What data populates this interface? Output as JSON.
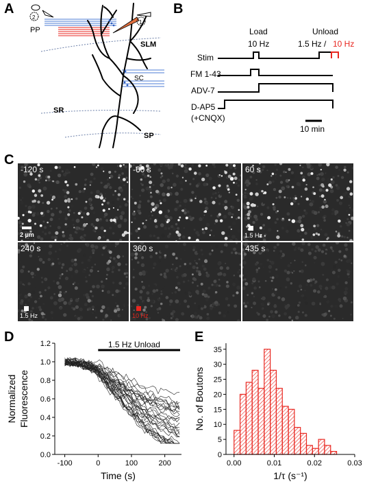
{
  "panels": {
    "a": {
      "label": "A",
      "pp": "PP",
      "slm": "SLM",
      "sc": "SC",
      "sr": "SR",
      "sp": "SP",
      "electrode1": "1",
      "electrode2": "2"
    },
    "b": {
      "label": "B",
      "load": "Load",
      "load_freq": "10 Hz",
      "unload": "Unload",
      "unload_freq": "1.5 Hz /",
      "unload_freq_red": "10 Hz",
      "rows": [
        "Stim",
        "FM 1-43",
        "ADV-7",
        "D-AP5",
        "(+CNQX)"
      ],
      "scale": "10 min",
      "red": "#e8261f"
    },
    "c": {
      "label": "C",
      "times": [
        "-120 s",
        "-60 s",
        "60 s",
        "240 s",
        "360 s",
        "435 s"
      ],
      "scalebar": "2 µm",
      "stim_labels": [
        "1.5 Hz",
        "1.5 Hz",
        "10 Hz"
      ]
    },
    "d": {
      "label": "D",
      "bar_label": "1.5 Hz Unload"
    },
    "e": {
      "label": "E"
    }
  },
  "chart_data": [
    {
      "type": "line",
      "xlabel": "Time (s)",
      "ylabel": "Normalized Fluorescence",
      "xlim": [
        -130,
        250
      ],
      "ylim": [
        0.0,
        1.2
      ],
      "xticks": [
        -100,
        0,
        100,
        200
      ],
      "yticks": [
        0.0,
        0.2,
        0.4,
        0.6,
        0.8,
        1.0,
        1.2
      ],
      "annotation": {
        "text": "1.5 Hz Unload",
        "start": 0,
        "end": 250
      },
      "mean_trace": {
        "x": [
          -120,
          -100,
          -80,
          -60,
          -40,
          -20,
          0,
          20,
          40,
          60,
          80,
          100,
          120,
          140,
          160,
          180,
          200,
          220,
          240
        ],
        "y": [
          0.98,
          1.0,
          1.0,
          0.99,
          0.97,
          0.95,
          0.92,
          0.86,
          0.8,
          0.74,
          0.68,
          0.62,
          0.57,
          0.52,
          0.48,
          0.44,
          0.41,
          0.38,
          0.36
        ]
      },
      "n_traces": 30
    },
    {
      "type": "bar",
      "xlabel": "1/τ (s⁻¹)",
      "ylabel": "No. of Boutons",
      "xlim": [
        -0.002,
        0.03
      ],
      "ylim": [
        0,
        37
      ],
      "xticks": [
        0.0,
        0.01,
        0.02,
        0.03
      ],
      "yticks": [
        0,
        5,
        10,
        15,
        20,
        25,
        30,
        35
      ],
      "bin_width": 0.0015,
      "bins_start": [
        0.0,
        0.0015,
        0.003,
        0.0045,
        0.006,
        0.0075,
        0.009,
        0.0105,
        0.012,
        0.0135,
        0.015,
        0.0165,
        0.018,
        0.0195,
        0.021,
        0.0225,
        0.024
      ],
      "values": [
        8,
        20,
        24,
        28,
        22,
        35,
        28,
        22,
        16,
        15,
        9,
        7,
        3,
        2,
        5,
        3,
        1
      ],
      "color": "#e8261f"
    }
  ]
}
